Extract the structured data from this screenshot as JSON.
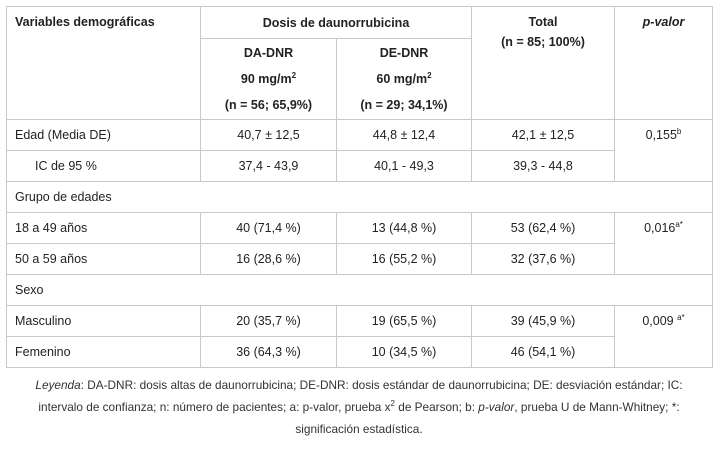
{
  "table": {
    "header": {
      "variables": "Variables demográficas",
      "dosis": "Dosis de daunorrubicina",
      "total": "Total",
      "total_n": "(n = 85; 100%)",
      "pvalor": "p-valor",
      "da": {
        "name": "DA-DNR",
        "dose": "90 mg/m",
        "dose_exp": "2",
        "n": "(n = 56; 65,9%)"
      },
      "de": {
        "name": "DE-DNR",
        "dose": "60 mg/m",
        "dose_exp": "2",
        "n": "(n = 29; 34,1%)"
      }
    },
    "rows": {
      "edad": {
        "label": "Edad (Media DE)",
        "da": "40,7 ± 12,5",
        "de": "44,8 ± 12,4",
        "total": "42,1 ± 12,5",
        "p": "0,155",
        "p_sup": "b"
      },
      "ic": {
        "label": "IC de 95 %",
        "da": "37,4 - 43,9",
        "de": "40,1 - 49,3",
        "total": "39,3 - 44,8"
      },
      "grupo": {
        "label": "Grupo de edades"
      },
      "g1": {
        "label": "18 a 49 años",
        "da": "40 (71,4 %)",
        "de": "13 (44,8 %)",
        "total": "53 (62,4 %)",
        "p": "0,016",
        "p_sup": "a*"
      },
      "g2": {
        "label": "50 a 59 años",
        "da": "16 (28,6 %)",
        "de": "16 (55,2 %)",
        "total": "32 (37,6 %)"
      },
      "sexo": {
        "label": "Sexo"
      },
      "masc": {
        "label": "Masculino",
        "da": "20 (35,7 %)",
        "de": "19 (65,5 %)",
        "total": "39 (45,9 %)",
        "p": "0,009 ",
        "p_sup": "a*"
      },
      "fem": {
        "label": "Femenino",
        "da": "36 (64,3 %)",
        "de": "10 (34,5 %)",
        "total": "46 (54,1 %)"
      }
    }
  },
  "caption": {
    "leyenda": "Leyenda",
    "part1": ": DA-DNR: dosis altas de daunorrubicina; DE-DNR: dosis estándar de daunorrubicina; DE: desviación estándar; IC: intervalo de confianza; n: número de pacientes; a: p-valor, prueba x",
    "x2_exp": "2",
    "part2": " de Pearson; b: ",
    "pvalor": "p-valor",
    "part3": ", prueba U de Mann-Whitney; *: significación estadística."
  }
}
